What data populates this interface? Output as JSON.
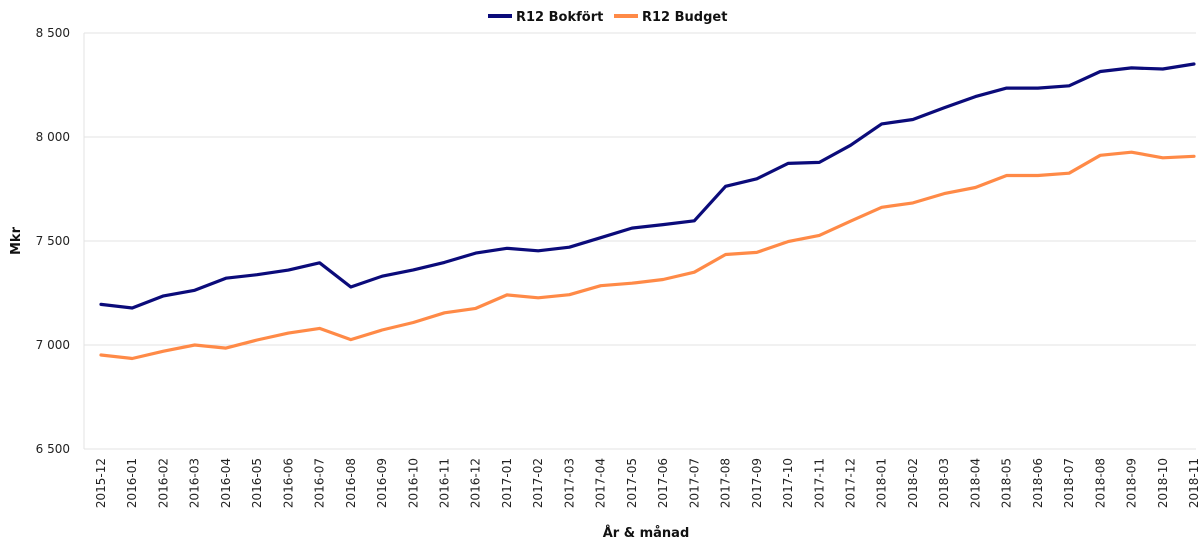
{
  "chart_data": {
    "type": "line",
    "xlabel": "År & månad",
    "ylabel": "Mkr",
    "ylim": [
      6500,
      8500
    ],
    "yticks": [
      6500,
      7000,
      7500,
      8000,
      8500
    ],
    "ytick_labels": [
      "6 500",
      "7 000",
      "7 500",
      "8 000",
      "8 500"
    ],
    "grid": "horizontal",
    "legend": "top-center",
    "categories": [
      "2015-12",
      "2016-01",
      "2016-02",
      "2016-03",
      "2016-04",
      "2016-05",
      "2016-06",
      "2016-07",
      "2016-08",
      "2016-09",
      "2016-10",
      "2016-11",
      "2016-12",
      "2017-01",
      "2017-02",
      "2017-03",
      "2017-04",
      "2017-05",
      "2017-06",
      "2017-07",
      "2017-08",
      "2017-09",
      "2017-10",
      "2017-11",
      "2017-12",
      "2018-01",
      "2018-02",
      "2018-03",
      "2018-04",
      "2018-05",
      "2018-06",
      "2018-07",
      "2018-08",
      "2018-09",
      "2018-10",
      "2018-11"
    ],
    "series": [
      {
        "name": "R12 Bokfört",
        "color": "#0b0b7a",
        "values": [
          7195,
          7178,
          7236,
          7263,
          7321,
          7338,
          7360,
          7395,
          7279,
          7331,
          7361,
          7397,
          7442,
          7465,
          7453,
          7470,
          7516,
          7562,
          7579,
          7597,
          7763,
          7799,
          7873,
          7878,
          7960,
          8063,
          8084,
          8141,
          8194,
          8235,
          8235,
          8246,
          8315,
          8332,
          8327,
          8351
        ]
      },
      {
        "name": "R12 Budget",
        "color": "#ff8a47",
        "values": [
          6952,
          6935,
          6970,
          7000,
          6985,
          7024,
          7057,
          7080,
          7026,
          7072,
          7108,
          7155,
          7176,
          7241,
          7227,
          7242,
          7285,
          7297,
          7315,
          7350,
          7435,
          7445,
          7497,
          7527,
          7595,
          7662,
          7683,
          7728,
          7757,
          7815,
          7815,
          7826,
          7912,
          7927,
          7900,
          7907
        ]
      }
    ]
  }
}
